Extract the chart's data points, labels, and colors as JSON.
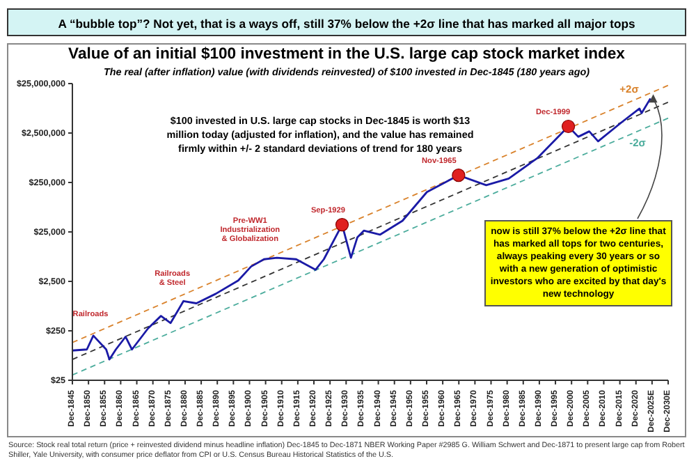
{
  "chart_data": {
    "type": "line",
    "title": "Value of an initial $100 investment in the U.S. large cap stock market index",
    "subtitle": "The real (after inflation) value (with dividends reinvested) of $100 invested in Dec-1845 (180 years ago)",
    "annotations": [
      "A “bubble top”? Not yet, that is a ways off, still 37% below the +2σ line that has marked all major tops",
      "$100 invested in U.S. large cap stocks in Dec-1845 is worth $13 million today (adjusted for inflation), and the value has remained firmly within +/- 2 standard deviations of trend for 180 years",
      "Source: Stock real total return (price + reinvested dividend minus headline inflation) Dec-1845 to Dec-1871 NBER Working Paper #2985 G. William Schwert and Dec-1871 to present large cap from Robert Shiller, Yale University, with consumer price deflator from CPI or U.S. Census Bureau Historical Statistics of the U.S.",
      {
        "text": "Railroads",
        "x": "1852-06",
        "y": 200
      },
      {
        "text": "Railroads & Steel",
        "x": "1880-06",
        "y": 1000
      },
      {
        "text": "Pre-WW1 Industrialization & Globalization",
        "x": "1905-06",
        "y": 7000
      },
      {
        "text": "Sep-1929",
        "x": "1929-09",
        "y": 35000
      },
      {
        "text": "Nov-1965",
        "x": "1965-11",
        "y": 350000
      },
      {
        "text": "Dec-1999",
        "x": "1999-12",
        "y": 3400000
      },
      {
        "text": "now is still 37% below the +2σ line that has marked all tops for two centuries, always peaking every 30 years or so with a new generation of optimistic investors who are excited by that day's new technology",
        "x": "2025-06",
        "y": 12500000
      }
    ],
    "log": "y",
    "grid": false,
    "legend": false,
    "xlim": [
      "1845-12",
      "2030-12"
    ],
    "xticks": [
      {
        "value": "1845-12",
        "label": "Dec-1845"
      },
      {
        "value": "1850-12",
        "label": "Dec-1850"
      },
      {
        "value": "1855-12",
        "label": "Dec-1855"
      },
      {
        "value": "1860-12",
        "label": "Dec-1860"
      },
      {
        "value": "1865-12",
        "label": "Dec-1865"
      },
      {
        "value": "1870-12",
        "label": "Dec-1870"
      },
      {
        "value": "1875-12",
        "label": "Dec-1875"
      },
      {
        "value": "1880-12",
        "label": "Dec-1880"
      },
      {
        "value": "1885-12",
        "label": "Dec-1885"
      },
      {
        "value": "1890-12",
        "label": "Dec-1890"
      },
      {
        "value": "1895-12",
        "label": "Dec-1895"
      },
      {
        "value": "1900-12",
        "label": "Dec-1900"
      },
      {
        "value": "1905-12",
        "label": "Dec-1905"
      },
      {
        "value": "1910-12",
        "label": "Dec-1910"
      },
      {
        "value": "1915-12",
        "label": "Dec-1915"
      },
      {
        "value": "1920-12",
        "label": "Dec-1920"
      },
      {
        "value": "1925-12",
        "label": "Dec-1925"
      },
      {
        "value": "1930-12",
        "label": "Dec-1930"
      },
      {
        "value": "1935-12",
        "label": "Dec-1935"
      },
      {
        "value": "1940-12",
        "label": "Dec-1940"
      },
      {
        "value": "1945-12",
        "label": "Dec-1945"
      },
      {
        "value": "1950-12",
        "label": "Dec-1950"
      },
      {
        "value": "1955-12",
        "label": "Dec-1955"
      },
      {
        "value": "1960-12",
        "label": "Dec-1960"
      },
      {
        "value": "1965-12",
        "label": "Dec-1965"
      },
      {
        "value": "1970-12",
        "label": "Dec-1970"
      },
      {
        "value": "1975-12",
        "label": "Dec-1975"
      },
      {
        "value": "1980-12",
        "label": "Dec-1980"
      },
      {
        "value": "1985-12",
        "label": "Dec-1985"
      },
      {
        "value": "1990-12",
        "label": "Dec-1990"
      },
      {
        "value": "1995-12",
        "label": "Dec-1995"
      },
      {
        "value": "2000-12",
        "label": "Dec-2000"
      },
      {
        "value": "2005-12",
        "label": "Dec-2005"
      },
      {
        "value": "2010-12",
        "label": "Dec-2010"
      },
      {
        "value": "2015-12",
        "label": "Dec-2015"
      },
      {
        "value": "2020-12",
        "label": "Dec-2020"
      },
      {
        "value": "2025-12",
        "label": "Dec-2025E"
      },
      {
        "value": "2030-12",
        "label": "Dec-2030E"
      }
    ],
    "ylim": [
      25,
      25000000
    ],
    "yticks": [
      {
        "value": 25,
        "label": "$25"
      },
      {
        "value": 250,
        "label": "$250"
      },
      {
        "value": 2500,
        "label": "$2,500"
      },
      {
        "value": 25000,
        "label": "$25,000"
      },
      {
        "value": 250000,
        "label": "$250,000"
      },
      {
        "value": 2500000,
        "label": "$2,500,000"
      },
      {
        "value": 25000000,
        "label": "$25,000,000"
      }
    ],
    "series": [
      {
        "name": "+2σ",
        "color": "#d9822b",
        "line_style": "dashed",
        "marker": "none",
        "x": [
          "1845-12",
          "2030-12"
        ],
        "values": [
          145,
          23000000
        ]
      },
      {
        "color": "#333333",
        "line_style": "dashed",
        "marker": "none",
        "x": [
          "1845-12",
          "2030-12"
        ],
        "values": [
          66,
          10500000
        ]
      },
      {
        "name": "-2σ",
        "color": "#4bac9c",
        "line_style": "dashed",
        "marker": "none",
        "x": [
          "1845-12",
          "2030-12"
        ],
        "values": [
          32,
          5000000
        ]
      },
      {
        "color": "#1a1aa6",
        "line_style": "solid",
        "marker": "none",
        "x": [
          "1845-12",
          "1850-06",
          "1852-06",
          "1856-06",
          "1857-06",
          "1859-06",
          "1861-06",
          "1862-06",
          "1864-06",
          "1869-06",
          "1873-06",
          "1876-06",
          "1880-06",
          "1884-06",
          "1890-06",
          "1897-06",
          "1901-06",
          "1905-06",
          "1909-06",
          "1915-06",
          "1921-06",
          "1924-01",
          "1929-09",
          "1932-06",
          "1934-06",
          "1936-06",
          "1941-06",
          "1948-06",
          "1956-01",
          "1965-11",
          "1974-06",
          "1981-06",
          "1990-06",
          "1999-12",
          "2003-01",
          "2006-06",
          "2009-03",
          "2016-06",
          "2022-01",
          "2022-09",
          "2025-06"
        ],
        "values": [
          100,
          105,
          200,
          105,
          66,
          105,
          155,
          190,
          105,
          280,
          500,
          360,
          1000,
          900,
          1400,
          2600,
          5000,
          7000,
          7500,
          7000,
          4300,
          7000,
          35000,
          7500,
          19500,
          26500,
          22000,
          42000,
          160000,
          350000,
          220000,
          300000,
          790000,
          3400000,
          2100000,
          2700000,
          1700000,
          4100000,
          7800000,
          6300000,
          12500000
        ]
      },
      {
        "type": "scatter",
        "color": "#e02020",
        "marker": "circle",
        "x": [
          "1929-09",
          "1965-11",
          "1999-12"
        ],
        "values": [
          35000,
          350000,
          3400000
        ]
      }
    ]
  }
}
